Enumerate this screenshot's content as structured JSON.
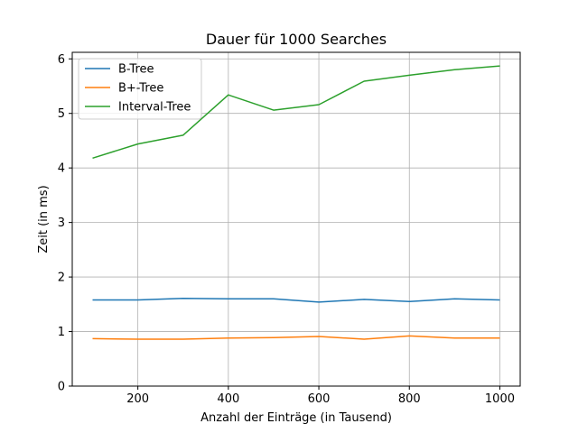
{
  "chart_data": {
    "type": "line",
    "title": "Dauer für 1000 Searches",
    "xlabel": "Anzahl der Einträge (in Tausend)",
    "ylabel": "Zeit (in ms)",
    "x": [
      100,
      200,
      300,
      400,
      500,
      600,
      700,
      800,
      900,
      1000
    ],
    "xlim": [
      55,
      1045
    ],
    "ylim": [
      0,
      6.12
    ],
    "xticks": [
      200,
      400,
      600,
      800,
      1000
    ],
    "yticks": [
      0,
      1,
      2,
      3,
      4,
      5,
      6
    ],
    "xtick_labels": [
      "200",
      "400",
      "600",
      "800",
      "1000"
    ],
    "ytick_labels": [
      "0",
      "1",
      "2",
      "3",
      "4",
      "5",
      "6"
    ],
    "grid": true,
    "legend_position": "upper-left",
    "series": [
      {
        "name": "B-Tree",
        "color": "#1f77b4",
        "values": [
          1.58,
          1.58,
          1.61,
          1.6,
          1.6,
          1.54,
          1.59,
          1.55,
          1.6,
          1.58
        ]
      },
      {
        "name": "B+-Tree",
        "color": "#ff7f0e",
        "values": [
          0.87,
          0.86,
          0.86,
          0.88,
          0.89,
          0.91,
          0.86,
          0.92,
          0.88,
          0.88
        ]
      },
      {
        "name": "Interval-Tree",
        "color": "#2ca02c",
        "values": [
          4.18,
          4.44,
          4.6,
          5.34,
          5.06,
          5.16,
          5.59,
          5.7,
          5.8,
          5.87
        ]
      }
    ]
  }
}
